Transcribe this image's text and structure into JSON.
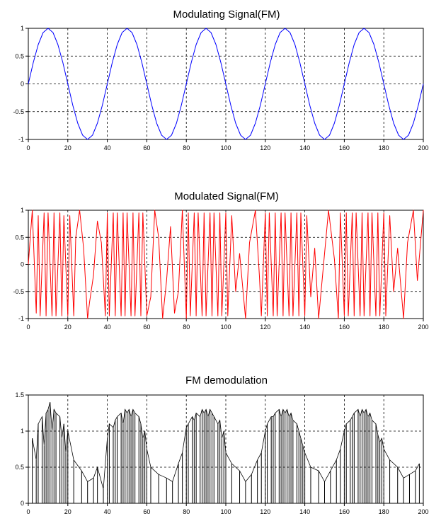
{
  "chart_data": [
    {
      "type": "line",
      "title": "Modulating Signal(FM)",
      "xlabel": "",
      "ylabel": "",
      "xlim": [
        0,
        200
      ],
      "ylim": [
        -1,
        1
      ],
      "x_ticks": [
        "0",
        "20",
        "40",
        "60",
        "80",
        "100",
        "120",
        "140",
        "160",
        "180",
        "200"
      ],
      "y_ticks": [
        "-1",
        "-0.5",
        "0",
        "0.5",
        "1"
      ],
      "grid": true,
      "grid_style": "dashed",
      "series": [
        {
          "color": "#0000ff",
          "x": [
            0,
            2.5,
            5,
            7.5,
            10,
            12.5,
            15,
            17.5,
            20,
            22.5,
            25,
            27.5,
            30,
            32.5,
            35,
            37.5,
            40,
            42.5,
            45,
            47.5,
            50,
            52.5,
            55,
            57.5,
            60,
            62.5,
            65,
            67.5,
            70,
            72.5,
            75,
            77.5,
            80,
            82.5,
            85,
            87.5,
            90,
            92.5,
            95,
            97.5,
            100,
            102.5,
            105,
            107.5,
            110,
            112.5,
            115,
            117.5,
            120,
            122.5,
            125,
            127.5,
            130,
            132.5,
            135,
            137.5,
            140,
            142.5,
            145,
            147.5,
            150,
            152.5,
            155,
            157.5,
            160,
            162.5,
            165,
            167.5,
            170,
            172.5,
            175,
            177.5,
            180,
            182.5,
            185,
            187.5,
            190,
            192.5,
            195,
            197.5,
            200
          ],
          "values": [
            0,
            0.383,
            0.707,
            0.924,
            1,
            0.924,
            0.707,
            0.383,
            0,
            -0.383,
            -0.707,
            -0.924,
            -1,
            -0.924,
            -0.707,
            -0.383,
            0,
            0.383,
            0.707,
            0.924,
            1,
            0.924,
            0.707,
            0.383,
            0,
            -0.383,
            -0.707,
            -0.924,
            -1,
            -0.924,
            -0.707,
            -0.383,
            0,
            0.383,
            0.707,
            0.924,
            1,
            0.924,
            0.707,
            0.383,
            0,
            -0.383,
            -0.707,
            -0.924,
            -1,
            -0.924,
            -0.707,
            -0.383,
            0,
            0.383,
            0.707,
            0.924,
            1,
            0.924,
            0.707,
            0.383,
            0,
            -0.383,
            -0.707,
            -0.924,
            -1,
            -0.924,
            -0.707,
            -0.383,
            0,
            0.383,
            0.707,
            0.924,
            1,
            0.924,
            0.707,
            0.383,
            0,
            -0.383,
            -0.707,
            -0.924,
            -1,
            -0.924,
            -0.707,
            -0.383,
            0
          ]
        }
      ]
    },
    {
      "type": "line",
      "title": "Modulated Signal(FM)",
      "xlabel": "",
      "ylabel": "",
      "xlim": [
        0,
        200
      ],
      "ylim": [
        -1,
        1
      ],
      "x_ticks": [
        "0",
        "20",
        "40",
        "60",
        "80",
        "100",
        "120",
        "140",
        "160",
        "180",
        "200"
      ],
      "y_ticks": [
        "-1",
        "-0.5",
        "0",
        "0.5",
        "1"
      ],
      "grid": true,
      "grid_style": "dashed",
      "series": [
        {
          "color": "#ff0000",
          "x": [
            0,
            2,
            4,
            5,
            6,
            8,
            9,
            10,
            12,
            13,
            14,
            16,
            17,
            18,
            20,
            21,
            23,
            24,
            26,
            28,
            30,
            31,
            33,
            35,
            37,
            39,
            40,
            41,
            43,
            44,
            45,
            47,
            48,
            49,
            50,
            52,
            53,
            54,
            56,
            57,
            58,
            60,
            62,
            64,
            66,
            68,
            70,
            72,
            74,
            76,
            78,
            80,
            81,
            82,
            84,
            85,
            86,
            88,
            89,
            90,
            92,
            93,
            94,
            96,
            97,
            98,
            100,
            101,
            103,
            105,
            107,
            110,
            112,
            115,
            117,
            118,
            120,
            121,
            122,
            124,
            125,
            126,
            128,
            129,
            130,
            132,
            133,
            134,
            136,
            137,
            138,
            140,
            141,
            143,
            145,
            147,
            150,
            152,
            155,
            157,
            158,
            160,
            161,
            162,
            164,
            165,
            166,
            168,
            169,
            170,
            172,
            173,
            174,
            176,
            177,
            178,
            180,
            181,
            183,
            185,
            187,
            190,
            192,
            195,
            197,
            200
          ],
          "values": [
            0,
            1,
            -0.9,
            0.9,
            -0.95,
            0.95,
            -0.95,
            0.95,
            -0.95,
            0.95,
            -0.95,
            0.95,
            -0.95,
            0.9,
            -0.95,
            0.9,
            -0.95,
            0.5,
            1,
            0.3,
            -1,
            -0.7,
            -0.2,
            0.8,
            0.4,
            -0.95,
            0.95,
            -0.95,
            0.95,
            -0.95,
            0.95,
            -0.95,
            0.95,
            -0.95,
            0.95,
            -0.95,
            0.95,
            -0.95,
            0.95,
            -0.95,
            0.95,
            -0.95,
            -0.6,
            1,
            0.5,
            -1,
            -0.3,
            0.7,
            -0.9,
            -0.5,
            1,
            -1,
            0.95,
            -0.95,
            0.95,
            -0.95,
            0.95,
            -0.95,
            0.95,
            -0.95,
            0.95,
            -0.95,
            0.95,
            -0.95,
            0.95,
            -0.95,
            0.95,
            -0.95,
            0.9,
            -0.5,
            0.2,
            -1,
            0.4,
            1,
            -0.2,
            -0.95,
            0.95,
            -0.95,
            0.95,
            -0.95,
            0.95,
            -0.95,
            0.95,
            -0.95,
            0.95,
            -0.95,
            0.95,
            -0.95,
            0.95,
            -0.95,
            0.95,
            -0.95,
            0.9,
            -0.6,
            0.3,
            -1,
            0.2,
            1,
            0.1,
            -1,
            0.95,
            -0.95,
            0.95,
            -0.95,
            0.95,
            -0.95,
            0.95,
            -0.95,
            0.95,
            -0.95,
            0.95,
            -0.95,
            0.95,
            -0.95,
            0.95,
            -0.95,
            0.95,
            -0.95,
            0.9,
            -0.5,
            0.3,
            -1,
            0.4,
            1,
            -0.3,
            1
          ]
        }
      ]
    },
    {
      "type": "line",
      "title": "FM demodulation",
      "xlabel": "",
      "ylabel": "",
      "xlim": [
        0,
        200
      ],
      "ylim": [
        0,
        1.5
      ],
      "x_ticks": [
        "0",
        "20",
        "40",
        "60",
        "80",
        "100",
        "120",
        "140",
        "160",
        "180",
        "200"
      ],
      "y_ticks": [
        "0",
        "0.5",
        "1",
        "1.5"
      ],
      "grid": true,
      "grid_style": "dashed",
      "series": [
        {
          "color": "#000000",
          "style": "impulse",
          "x": [
            2,
            4,
            5,
            7,
            8,
            9,
            10,
            11,
            12,
            13,
            14,
            16,
            17,
            18,
            19,
            20,
            23,
            27,
            30,
            33,
            35,
            38,
            40,
            41,
            43,
            44,
            45,
            47,
            48,
            49,
            50,
            51,
            52,
            53,
            54,
            56,
            57,
            58,
            59,
            60,
            62,
            66,
            70,
            73,
            76,
            78,
            80,
            81,
            83,
            84,
            85,
            87,
            88,
            89,
            90,
            91,
            92,
            93,
            94,
            96,
            97,
            98,
            99,
            100,
            103,
            107,
            110,
            113,
            116,
            118,
            120,
            121,
            123,
            124,
            125,
            127,
            128,
            129,
            130,
            131,
            132,
            133,
            134,
            136,
            137,
            138,
            139,
            140,
            143,
            147,
            150,
            153,
            156,
            158,
            160,
            161,
            163,
            164,
            165,
            167,
            168,
            169,
            170,
            171,
            172,
            173,
            174,
            176,
            177,
            178,
            179,
            180,
            183,
            187,
            190,
            193,
            196,
            198
          ],
          "values": [
            0.9,
            0.6,
            1.1,
            1.2,
            0.8,
            1.25,
            1.3,
            1.4,
            1.0,
            1.3,
            1.25,
            1.2,
            0.9,
            1.1,
            0.7,
            1.0,
            0.6,
            0.45,
            0.3,
            0.35,
            0.5,
            0.2,
            0.9,
            1.1,
            1.05,
            1.15,
            1.2,
            1.25,
            1.1,
            1.3,
            1.25,
            1.3,
            1.2,
            1.3,
            1.25,
            1.2,
            1.1,
            0.9,
            1.0,
            0.75,
            0.5,
            0.4,
            0.35,
            0.3,
            0.55,
            0.7,
            1.05,
            1.1,
            1.2,
            1.15,
            1.25,
            1.2,
            1.3,
            1.25,
            1.3,
            1.2,
            1.3,
            1.25,
            1.2,
            1.1,
            1.15,
            0.9,
            1.0,
            0.7,
            0.55,
            0.45,
            0.3,
            0.4,
            0.6,
            0.7,
            1.0,
            1.1,
            1.2,
            1.2,
            1.25,
            1.3,
            1.2,
            1.3,
            1.25,
            1.3,
            1.2,
            1.25,
            1.15,
            1.1,
            1.0,
            0.9,
            0.8,
            0.7,
            0.5,
            0.45,
            0.3,
            0.45,
            0.6,
            0.75,
            1.0,
            1.1,
            1.15,
            1.2,
            1.25,
            1.3,
            1.2,
            1.3,
            1.25,
            1.3,
            1.2,
            1.25,
            1.15,
            1.1,
            0.95,
            0.85,
            0.9,
            0.75,
            0.6,
            0.5,
            0.35,
            0.4,
            0.45,
            0.55
          ]
        }
      ]
    }
  ]
}
